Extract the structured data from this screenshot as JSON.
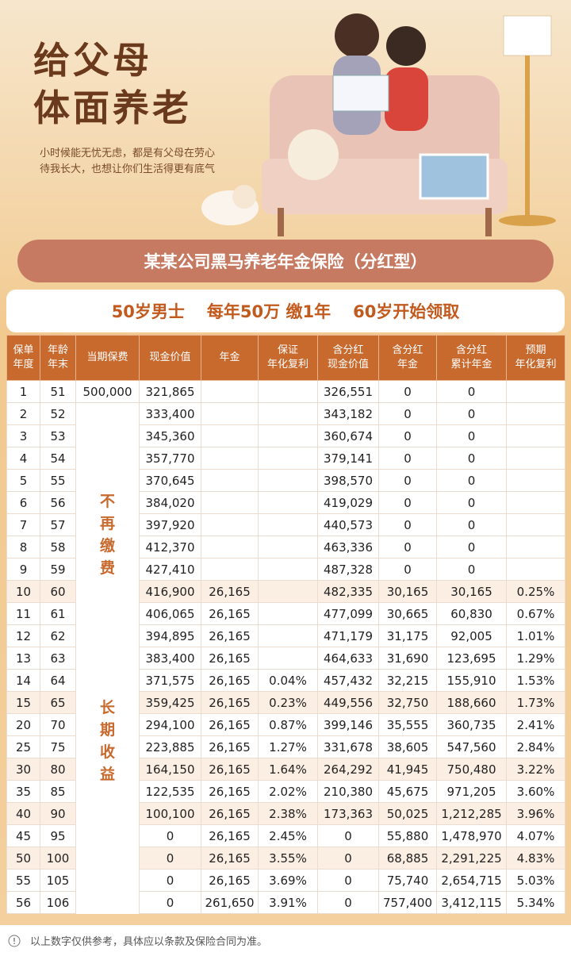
{
  "header": {
    "title": [
      "给父母",
      "体面养老"
    ],
    "subtitle": [
      "小时候能无忧无虑，都是有父母在劳心",
      "待我长大，也想让你们生活得更有底气"
    ]
  },
  "banner": "某某公司黑马养老年金保险（分红型）",
  "summary": [
    "50岁男士",
    "每年50万 缴1年",
    "60岁开始领取"
  ],
  "table": {
    "columns": [
      [
        "保单",
        "年度"
      ],
      [
        "年龄",
        "年末"
      ],
      [
        "当期保费"
      ],
      [
        "现金价值"
      ],
      [
        "年金"
      ],
      [
        "保证",
        "年化复利"
      ],
      [
        "含分红",
        "现金价值"
      ],
      [
        "含分红",
        "年金"
      ],
      [
        "含分红",
        "累计年金"
      ],
      [
        "预期",
        "年化复利"
      ]
    ],
    "premium_notes": [
      "不再缴费",
      "长期收益"
    ],
    "rows": [
      [
        "1",
        "51",
        "500,000",
        "321,865",
        null,
        null,
        "326,551",
        "0",
        "0",
        null
      ],
      [
        "2",
        "52",
        null,
        "333,400",
        null,
        null,
        "343,182",
        "0",
        "0",
        null
      ],
      [
        "3",
        "53",
        null,
        "345,360",
        null,
        null,
        "360,674",
        "0",
        "0",
        null
      ],
      [
        "4",
        "54",
        null,
        "357,770",
        null,
        null,
        "379,141",
        "0",
        "0",
        null
      ],
      [
        "5",
        "55",
        null,
        "370,645",
        null,
        null,
        "398,570",
        "0",
        "0",
        null
      ],
      [
        "6",
        "56",
        null,
        "384,020",
        null,
        null,
        "419,029",
        "0",
        "0",
        null
      ],
      [
        "7",
        "57",
        null,
        "397,920",
        null,
        null,
        "440,573",
        "0",
        "0",
        null
      ],
      [
        "8",
        "58",
        null,
        "412,370",
        null,
        null,
        "463,336",
        "0",
        "0",
        null
      ],
      [
        "9",
        "59",
        null,
        "427,410",
        null,
        null,
        "487,328",
        "0",
        "0",
        null
      ],
      [
        "10",
        "60",
        null,
        "416,900",
        "26,165",
        null,
        "482,335",
        "30,165",
        "30,165",
        "0.25%"
      ],
      [
        "11",
        "61",
        null,
        "406,065",
        "26,165",
        null,
        "477,099",
        "30,665",
        "60,830",
        "0.67%"
      ],
      [
        "12",
        "62",
        null,
        "394,895",
        "26,165",
        null,
        "471,179",
        "31,175",
        "92,005",
        "1.01%"
      ],
      [
        "13",
        "63",
        null,
        "383,400",
        "26,165",
        null,
        "464,633",
        "31,690",
        "123,695",
        "1.29%"
      ],
      [
        "14",
        "64",
        null,
        "371,575",
        "26,165",
        "0.04%",
        "457,432",
        "32,215",
        "155,910",
        "1.53%"
      ],
      [
        "15",
        "65",
        null,
        "359,425",
        "26,165",
        "0.23%",
        "449,556",
        "32,750",
        "188,660",
        "1.73%"
      ],
      [
        "20",
        "70",
        null,
        "294,100",
        "26,165",
        "0.87%",
        "399,146",
        "35,555",
        "360,735",
        "2.41%"
      ],
      [
        "25",
        "75",
        null,
        "223,885",
        "26,165",
        "1.27%",
        "331,678",
        "38,605",
        "547,560",
        "2.84%"
      ],
      [
        "30",
        "80",
        null,
        "164,150",
        "26,165",
        "1.64%",
        "264,292",
        "41,945",
        "750,480",
        "3.22%"
      ],
      [
        "35",
        "85",
        null,
        "122,535",
        "26,165",
        "2.02%",
        "210,380",
        "45,675",
        "971,205",
        "3.60%"
      ],
      [
        "40",
        "90",
        null,
        "100,100",
        "26,165",
        "2.38%",
        "173,363",
        "50,025",
        "1,212,285",
        "3.96%"
      ],
      [
        "45",
        "95",
        null,
        "0",
        "26,165",
        "2.45%",
        "0",
        "55,880",
        "1,478,970",
        "4.07%"
      ],
      [
        "50",
        "100",
        null,
        "0",
        "26,165",
        "3.55%",
        "0",
        "68,885",
        "2,291,225",
        "4.83%"
      ],
      [
        "55",
        "105",
        null,
        "0",
        "26,165",
        "3.69%",
        "0",
        "75,740",
        "2,654,715",
        "5.03%"
      ],
      [
        "56",
        "106",
        null,
        "0",
        "261,650",
        "3.91%",
        "0",
        "757,400",
        "3,412,115",
        "5.34%"
      ]
    ]
  },
  "footer": "以上数字仅供参考，具体应以条款及保险合同为准。"
}
